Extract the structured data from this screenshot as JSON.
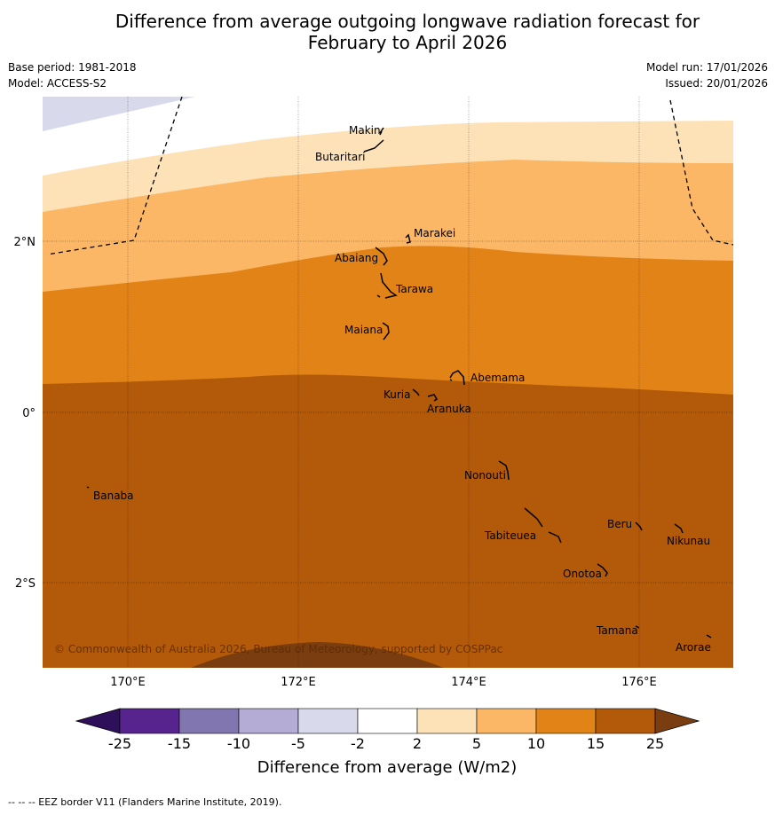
{
  "header": {
    "title_line1": "Difference from average outgoing longwave radiation forecast for",
    "title_line2": "February to April 2026",
    "base_period": "Base period: 1981-2018",
    "model": "Model: ACCESS-S2",
    "model_run": "Model run: 17/01/2026",
    "issued": "Issued: 20/01/2026"
  },
  "map": {
    "x_ticks": [
      "170°E",
      "172°E",
      "174°E",
      "176°E"
    ],
    "y_ticks": [
      "2°N",
      "0°",
      "2°S"
    ],
    "places": [
      "Makin",
      "Butaritari",
      "Marakei",
      "Abaiang",
      "Tarawa",
      "Maiana",
      "Abemama",
      "Kuria",
      "Aranuka",
      "Nonouti",
      "Banaba",
      "Beru",
      "Nikunau",
      "Tabiteuea",
      "Onotoa",
      "Tamana",
      "Arorae"
    ],
    "copyright": "© Commonwealth of Australia 2026, Bureau of Meteorology, supported by COSPPac"
  },
  "legend": {
    "boundaries": [
      "-25",
      "-15",
      "-10",
      "-5",
      "-2",
      "2",
      "5",
      "10",
      "15",
      "25"
    ],
    "colors": [
      "#2d0f5a",
      "#56248c",
      "#8276b0",
      "#b4acd4",
      "#d9d9ec",
      "#ffffff",
      "#fde2b8",
      "#fbb765",
      "#e18317",
      "#b25a09",
      "#7a3d0f"
    ],
    "label": "Difference from average (W/m2)"
  },
  "footer": {
    "eez_note": "--  --  -- EEZ border V11 (Flanders Marine Institute, 2019)."
  }
}
